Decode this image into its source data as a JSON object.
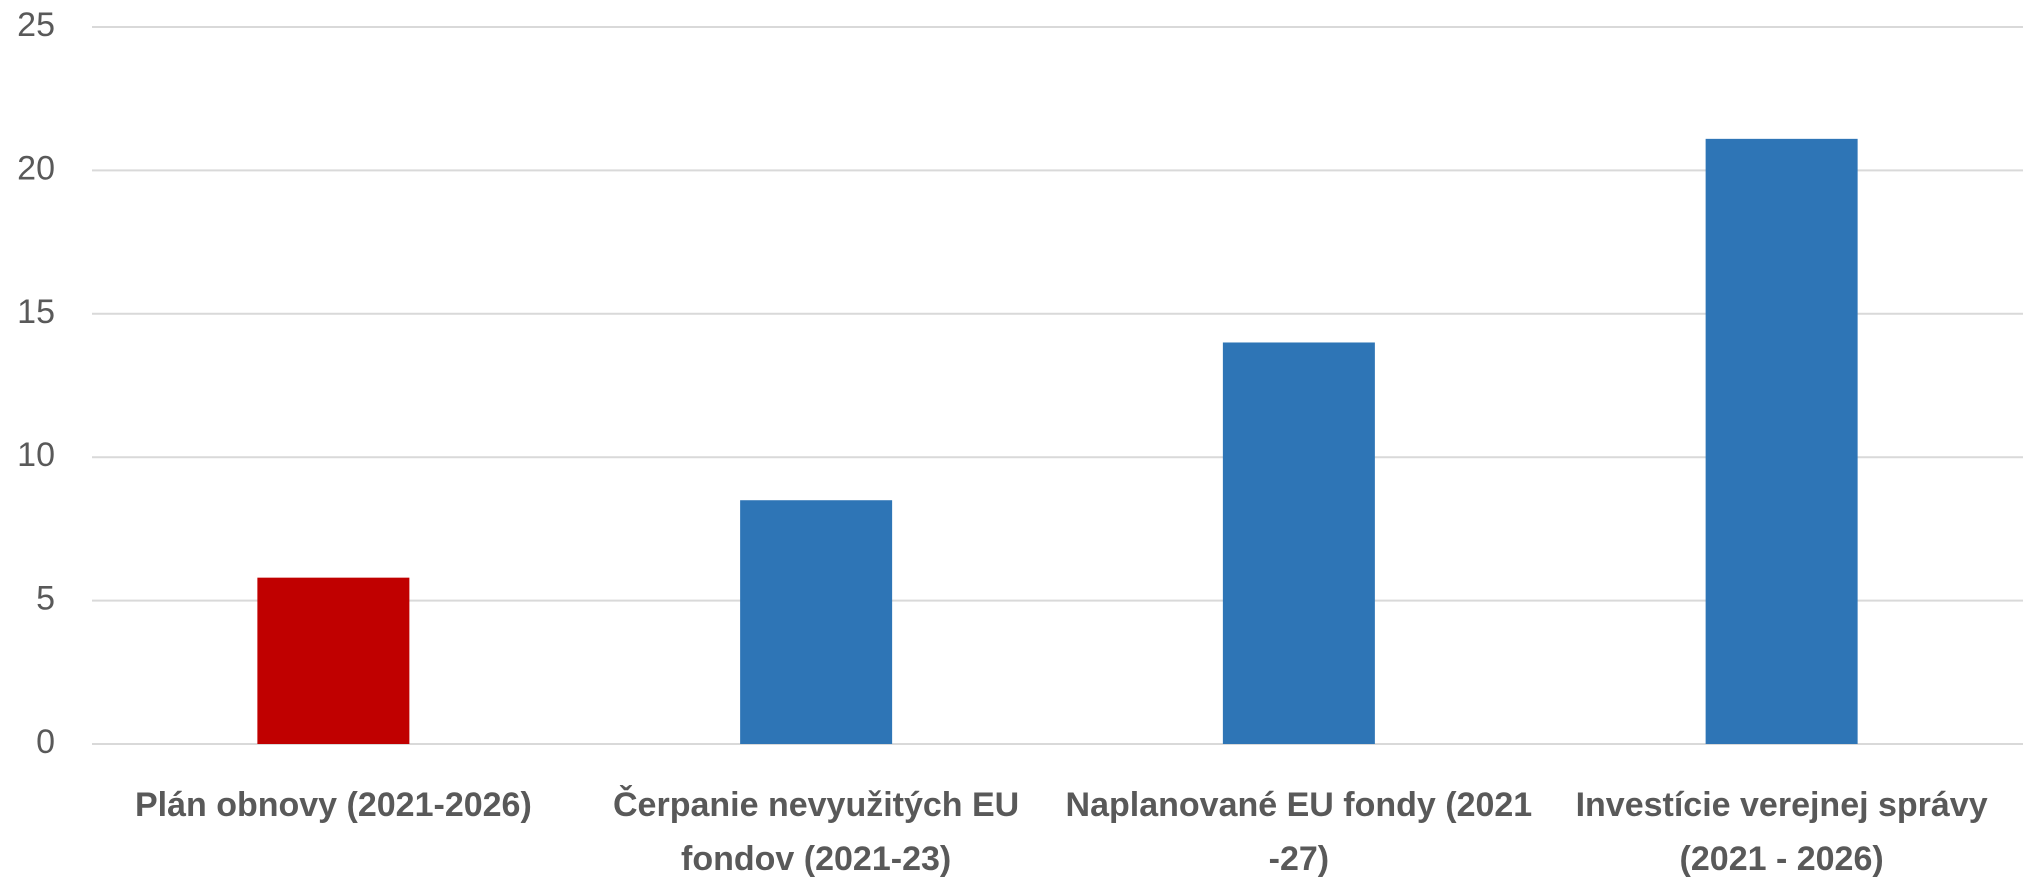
{
  "chart_data": {
    "type": "bar",
    "categories": [
      "Plán obnovy (2021-2026)",
      "Čerpanie nevyužitých EU fondov (2021-23)",
      "Naplanované EU fondy (2021 -27)",
      "Investície verejnej správy (2021 - 2026)"
    ],
    "values": [
      5.8,
      8.5,
      14,
      21.1
    ],
    "colors": [
      "#c00000",
      "#2e75b6",
      "#2e75b6",
      "#2e75b6"
    ],
    "ylim": [
      0,
      25
    ],
    "yticks": [
      0,
      5,
      10,
      15,
      20,
      25
    ],
    "grid": true
  }
}
